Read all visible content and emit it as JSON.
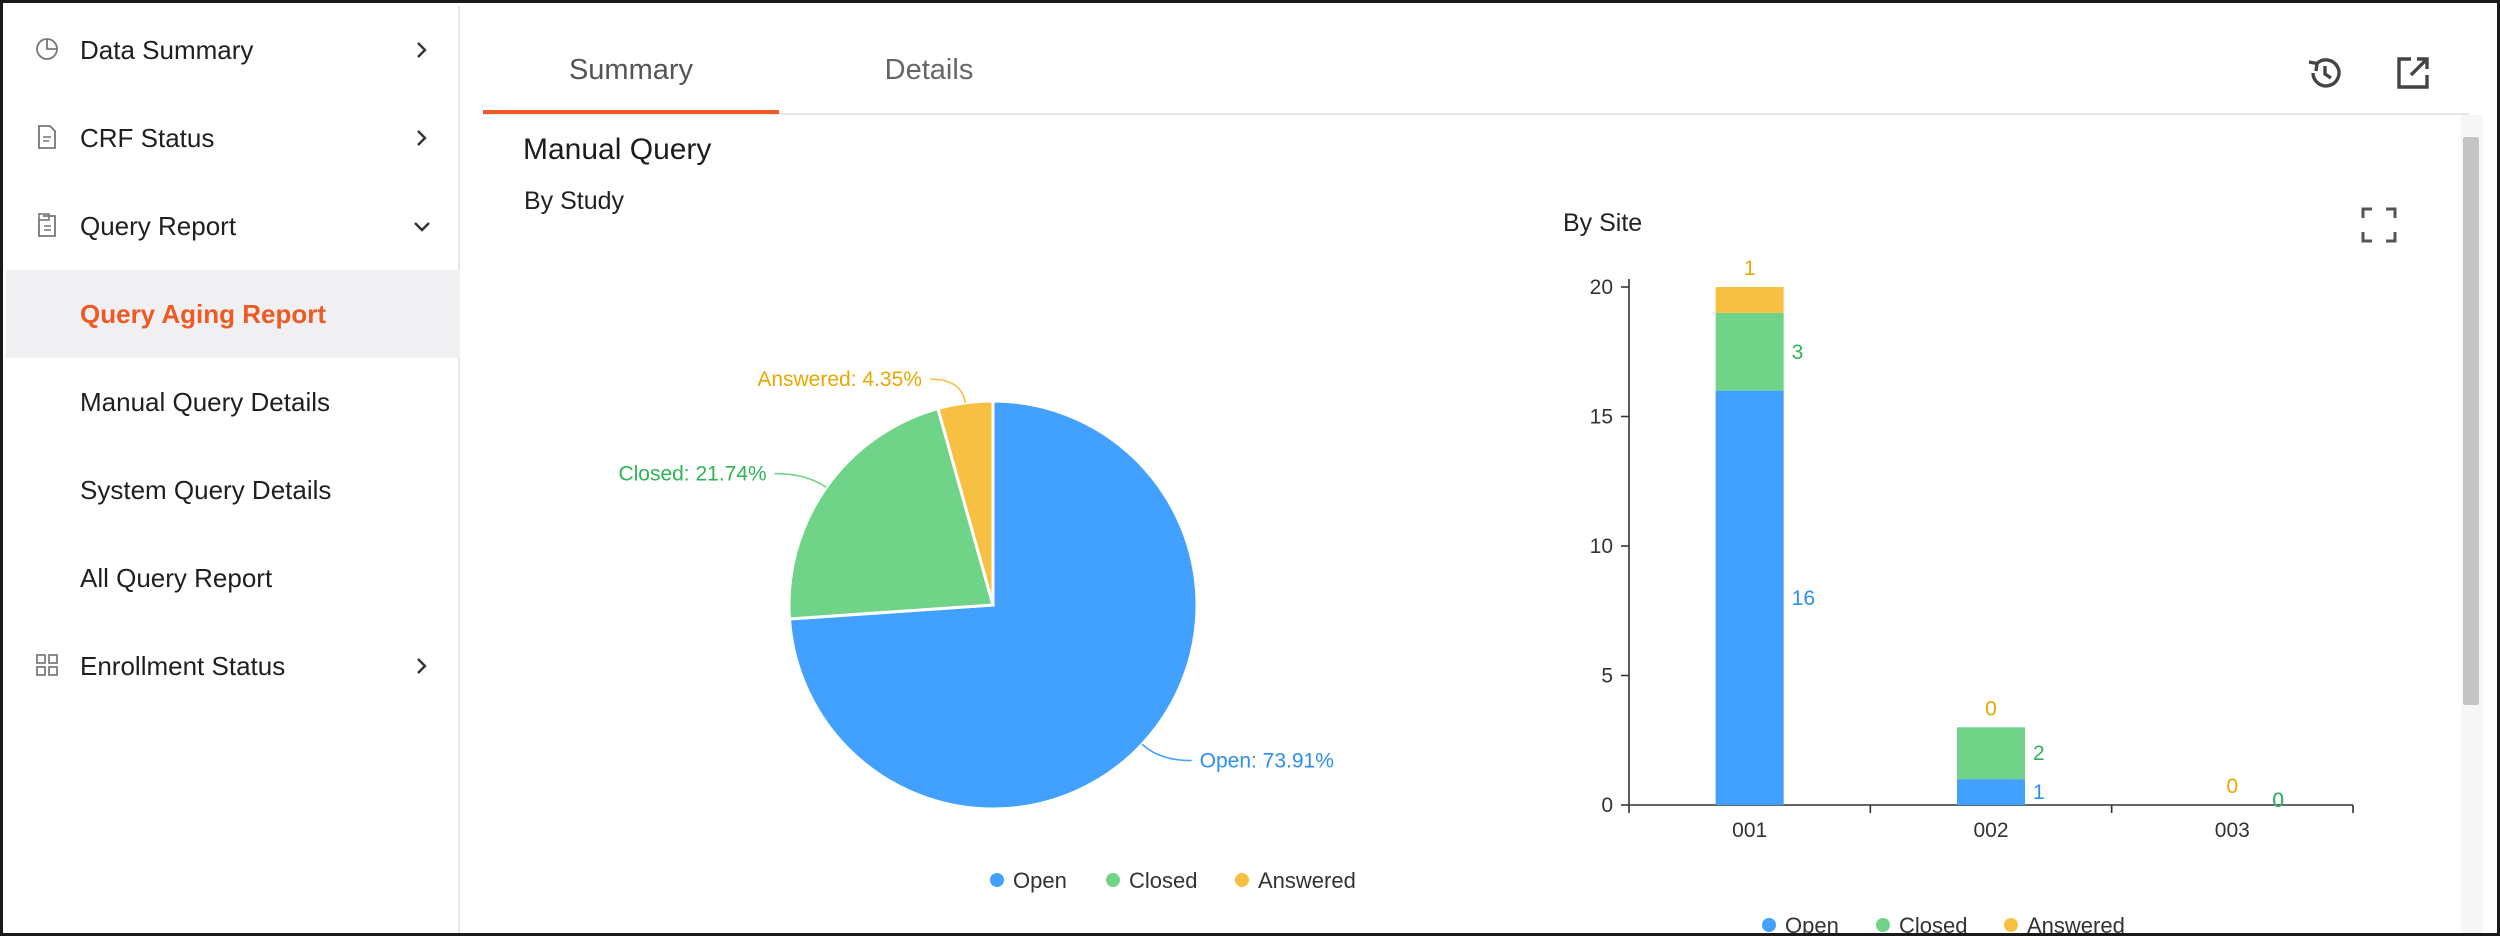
{
  "sidebar": {
    "items": [
      {
        "label": "Data Summary",
        "icon": "pie-chart-icon",
        "chevron": "right"
      },
      {
        "label": "CRF Status",
        "icon": "document-icon",
        "chevron": "right"
      },
      {
        "label": "Query Report",
        "icon": "clipboard-icon",
        "chevron": "down"
      },
      {
        "label": "Query Aging Report",
        "sub": true,
        "active": true
      },
      {
        "label": "Manual Query Details",
        "sub": true
      },
      {
        "label": "System Query Details",
        "sub": true
      },
      {
        "label": "All Query Report",
        "sub": true
      },
      {
        "label": "Enrollment Status",
        "icon": "grid-icon",
        "chevron": "right"
      }
    ]
  },
  "tabs": [
    {
      "label": "Summary",
      "active": true
    },
    {
      "label": "Details",
      "active": false
    }
  ],
  "icons": {
    "history": "history-icon",
    "export": "external-link-icon",
    "fullscreen": "fullscreen-icon"
  },
  "section_title": "Manual Query",
  "colors": {
    "open": "#42a0ff",
    "closed": "#6fd388",
    "answered": "#f7c043",
    "accent": "#ee5a24"
  },
  "chart_data": [
    {
      "type": "pie",
      "title": "By Study",
      "slices": [
        {
          "name": "Open",
          "percent": 73.91,
          "label": "Open: 73.91%"
        },
        {
          "name": "Closed",
          "percent": 21.74,
          "label": "Closed: 21.74%"
        },
        {
          "name": "Answered",
          "percent": 4.35,
          "label": "Answered: 4.35%"
        }
      ],
      "legend": [
        "Open",
        "Closed",
        "Answered"
      ],
      "legend_position": "bottom-center"
    },
    {
      "type": "bar",
      "stacked": true,
      "title": "By Site",
      "categories": [
        "001",
        "002",
        "003"
      ],
      "series": [
        {
          "name": "Open",
          "values": [
            16,
            1,
            0
          ]
        },
        {
          "name": "Closed",
          "values": [
            3,
            2,
            0
          ]
        },
        {
          "name": "Answered",
          "values": [
            1,
            0,
            0
          ]
        }
      ],
      "yticks": [
        "0",
        "5",
        "10",
        "15",
        "20"
      ],
      "ylim": [
        0,
        20
      ],
      "legend": [
        "Open",
        "Closed",
        "Answered"
      ],
      "legend_position": "bottom-center"
    }
  ]
}
